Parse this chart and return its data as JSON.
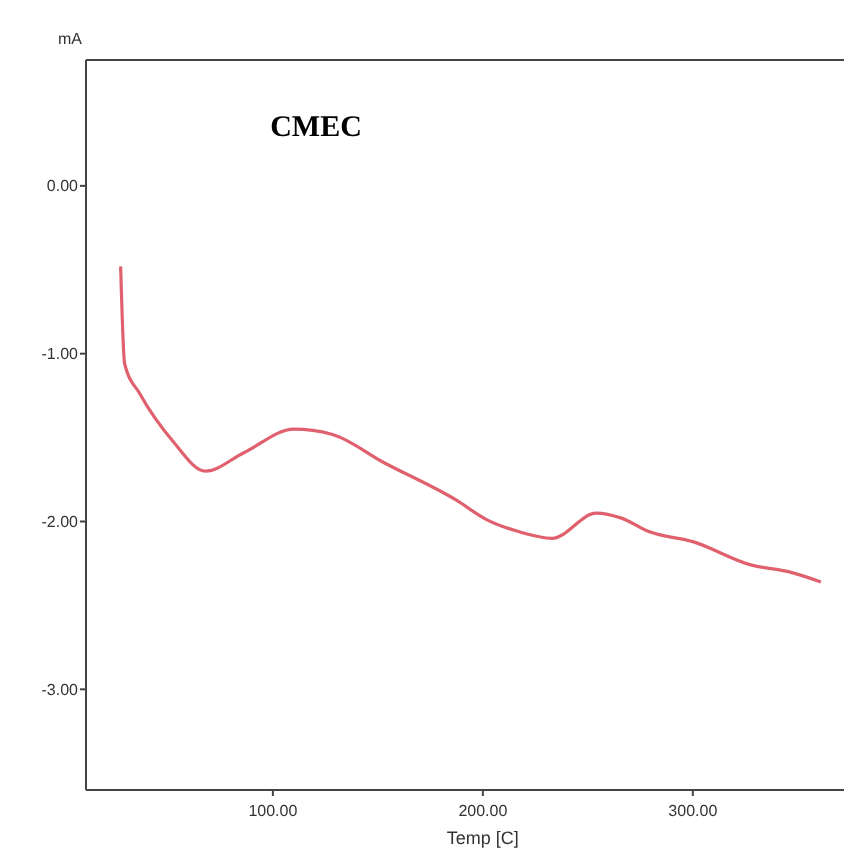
{
  "chart_data": {
    "type": "line",
    "title": "CMEC",
    "xlabel": "Temp [C]",
    "ylabel": "mA",
    "xlim": [
      11,
      372
    ],
    "ylim": [
      -3.6,
      0.75
    ],
    "xticks": [
      {
        "value": 100,
        "label": "100.00"
      },
      {
        "value": 200,
        "label": "200.00"
      },
      {
        "value": 300,
        "label": "300.00"
      }
    ],
    "yticks": [
      {
        "value": 0,
        "label": "0.00"
      },
      {
        "value": -1,
        "label": "-1.00"
      },
      {
        "value": -2,
        "label": "-2.00"
      },
      {
        "value": -3,
        "label": "-3.00"
      }
    ],
    "grid": false,
    "marker": "none",
    "line_style": "solid",
    "series": [
      {
        "color": "#e0606e",
        "x": [
          27.5,
          29.4,
          36.7,
          52.3,
          67.9,
          86.2,
          110,
          128,
          153,
          187,
          202,
          217,
          233,
          254,
          266,
          279,
          300,
          328,
          346,
          361
        ],
        "values": [
          -0.48,
          -1.06,
          -1.24,
          -1.52,
          -1.7,
          -1.59,
          -1.45,
          -1.48,
          -1.65,
          -1.87,
          -1.99,
          -2.06,
          -2.1,
          -1.95,
          -1.98,
          -2.06,
          -2.12,
          -2.26,
          -2.3,
          -2.36
        ]
      }
    ]
  }
}
